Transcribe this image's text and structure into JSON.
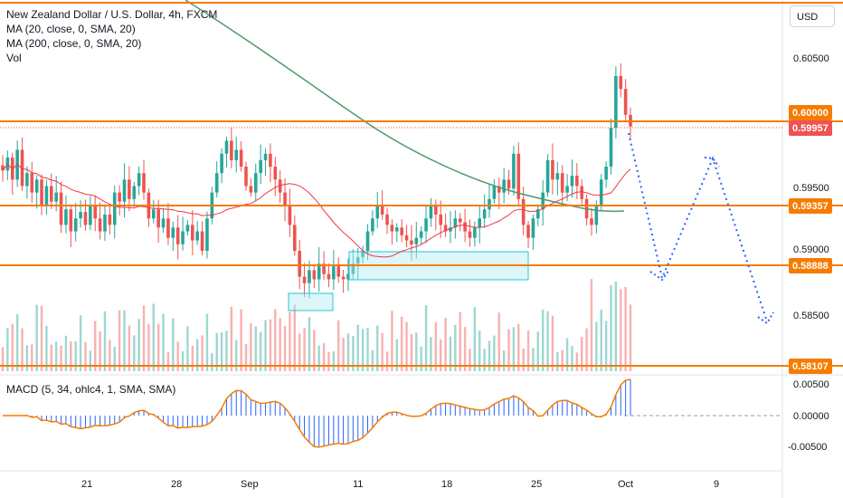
{
  "header": {
    "symbol_title": "New Zealand Dollar / U.S. Dollar, 4h, FXCM",
    "ma20_label": "MA (20, close, 0, SMA, 20)",
    "ma200_label": "MA (200, close, 0, SMA, 20)",
    "vol_label": "Vol",
    "currency_button": "USD"
  },
  "macd": {
    "label": "MACD (5, 34, ohlc4, 1, SMA, SMA)",
    "ticks": [
      "0.00500",
      "0.00000",
      "-0.00500"
    ]
  },
  "colors": {
    "up": "#26a69a",
    "down": "#ef5350",
    "level": "#f57c00",
    "ma20": "#f23645",
    "ma200": "#4c9a6a",
    "box_fill": "#b2ebf2",
    "box_stroke": "#26c6da",
    "projection": "#2962ff",
    "price_tag": "#ef5350",
    "level_tag": "#f57c00",
    "macd_hist": "#2962ff",
    "macd_line": "#f57c00"
  },
  "chart_data": {
    "type": "candlestick",
    "title": "New Zealand Dollar / U.S. Dollar, 4h, FXCM",
    "y_ticks": [
      "0.60500",
      "0.60000",
      "0.59500",
      "0.59000",
      "0.58500"
    ],
    "ylim": [
      0.5807,
      0.609
    ],
    "x_ticks": [
      "21",
      "28",
      "Sep",
      "11",
      "18",
      "25",
      "Oct",
      "9"
    ],
    "horizontal_levels": [
      {
        "price": 0.6,
        "label": "0.60000"
      },
      {
        "price": 0.59357,
        "label": "0.59357"
      },
      {
        "price": 0.58888,
        "label": "0.58888"
      },
      {
        "price": 0.58107,
        "label": "0.58107"
      },
      {
        "price": 0.6089,
        "label": ""
      }
    ],
    "last_price": {
      "price": 0.59957,
      "label": "0.59957"
    },
    "closes": [
      0.5962,
      0.5972,
      0.5955,
      0.5978,
      0.595,
      0.596,
      0.5945,
      0.5955,
      0.5935,
      0.595,
      0.5938,
      0.5945,
      0.592,
      0.5932,
      0.5915,
      0.5925,
      0.593,
      0.592,
      0.5935,
      0.5925,
      0.5915,
      0.5928,
      0.592,
      0.5945,
      0.5938,
      0.5955,
      0.594,
      0.595,
      0.596,
      0.5945,
      0.5925,
      0.5932,
      0.5918,
      0.5925,
      0.591,
      0.5918,
      0.5905,
      0.5915,
      0.592,
      0.5908,
      0.5915,
      0.59,
      0.5925,
      0.5945,
      0.596,
      0.5975,
      0.5985,
      0.597,
      0.5978,
      0.5965,
      0.595,
      0.5945,
      0.596,
      0.597,
      0.5975,
      0.5965,
      0.5955,
      0.5945,
      0.5935,
      0.592,
      0.59,
      0.588,
      0.5875,
      0.5885,
      0.5878,
      0.589,
      0.5882,
      0.5878,
      0.5888,
      0.588,
      0.5878,
      0.5882,
      0.589,
      0.5895,
      0.59,
      0.5915,
      0.5925,
      0.5935,
      0.5928,
      0.592,
      0.5915,
      0.5918,
      0.5912,
      0.5908,
      0.5905,
      0.591,
      0.5915,
      0.5925,
      0.5935,
      0.5928,
      0.592,
      0.5915,
      0.5918,
      0.5925,
      0.5922,
      0.5915,
      0.591,
      0.5918,
      0.5925,
      0.5932,
      0.594,
      0.595,
      0.5945,
      0.5955,
      0.5948,
      0.5975,
      0.594,
      0.592,
      0.591,
      0.5925,
      0.5932,
      0.5945,
      0.597,
      0.5955,
      0.596,
      0.5945,
      0.595,
      0.5958,
      0.595,
      0.594,
      0.5925,
      0.592,
      0.5935,
      0.5955,
      0.5965,
      0.5995,
      0.6035,
      0.6025,
      0.6005,
      0.5996
    ]
  }
}
